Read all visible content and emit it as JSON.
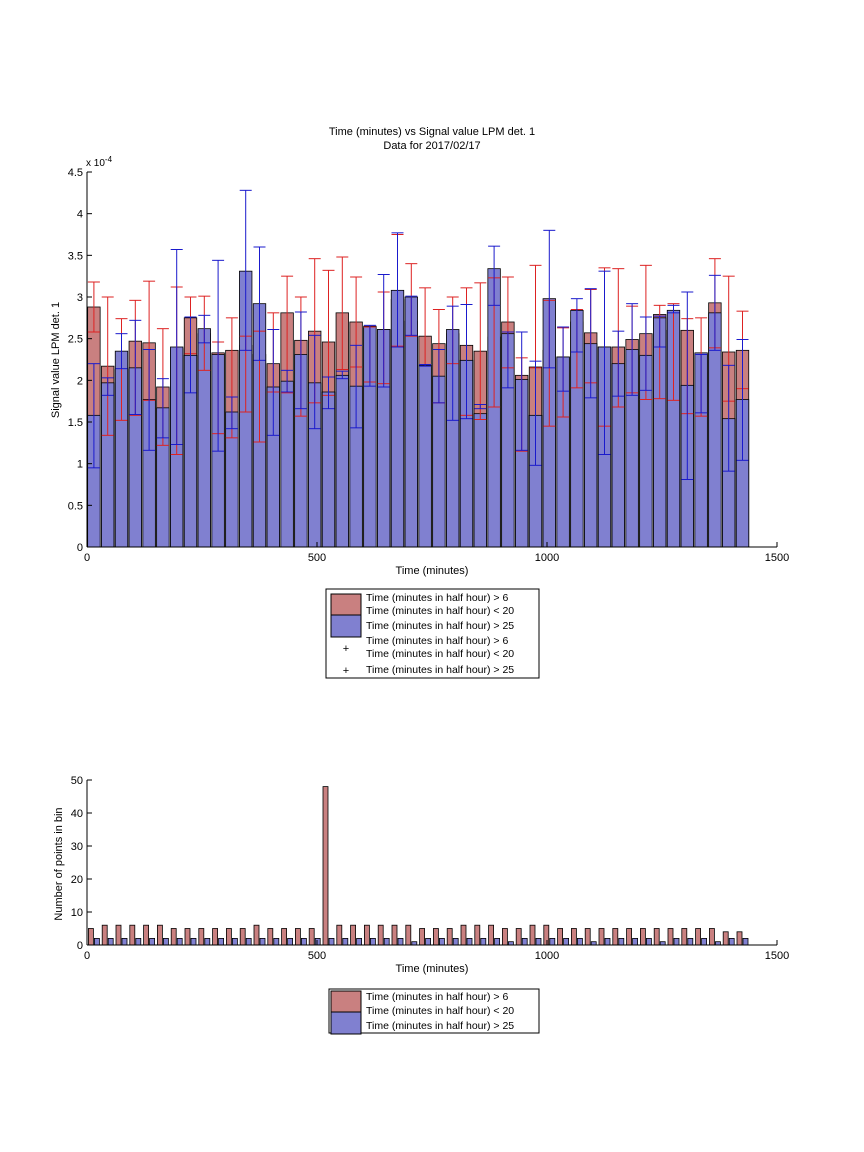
{
  "colors": {
    "red_fill": "#c98080",
    "blue_fill": "#8080d0",
    "red_err": "#dd2222",
    "blue_err": "#1a1acc"
  },
  "chart_data": [
    {
      "type": "bar",
      "title": "Time (minutes) vs Signal value LPM det. 1",
      "subtitle": "Data for 2017/02/17",
      "xlabel": "Time (minutes)",
      "ylabel": "Signal value LPM det. 1",
      "exponent_label": "x 10",
      "exponent_power": "-4",
      "xlim": [
        0,
        1500
      ],
      "ylim": [
        0,
        4.5
      ],
      "xticks": [
        0,
        500,
        1000,
        1500
      ],
      "yticks": [
        0,
        0.5,
        1,
        1.5,
        2,
        2.5,
        3,
        3.5,
        4,
        4.5
      ],
      "grid": false,
      "legend_position": "below",
      "legend": [
        {
          "kind": "patch",
          "color": "red",
          "lines": [
            "Time (minutes in half hour) > 6",
            "Time (minutes in half hour) < 20"
          ]
        },
        {
          "kind": "patch",
          "color": "blue",
          "lines": [
            "Time (minutes in half hour) > 25"
          ]
        },
        {
          "kind": "marker",
          "color": "red",
          "lines": [
            "Time (minutes in half hour) > 6",
            "Time (minutes in half hour) < 20"
          ]
        },
        {
          "kind": "marker",
          "color": "blue",
          "lines": [
            "Time (minutes in half hour) > 25"
          ]
        }
      ],
      "x": [
        0,
        30,
        60,
        90,
        120,
        150,
        180,
        210,
        240,
        270,
        300,
        330,
        360,
        390,
        420,
        450,
        480,
        510,
        540,
        570,
        600,
        630,
        660,
        690,
        720,
        750,
        780,
        810,
        840,
        870,
        900,
        930,
        960,
        990,
        1020,
        1050,
        1080,
        1110,
        1140,
        1170,
        1200,
        1230,
        1260,
        1290,
        1320,
        1350,
        1380,
        1410
      ],
      "series": [
        {
          "name": "Time (minutes in half hour) > 6 / < 20",
          "color": "red",
          "values": [
            2.88,
            2.17,
            2.13,
            2.47,
            2.45,
            1.92,
            2.38,
            2.75,
            2.56,
            2.33,
            2.36,
            2.42,
            2.31,
            2.2,
            2.81,
            2.48,
            2.59,
            2.46,
            2.81,
            2.7,
            2.63,
            2.61,
            2.97,
            2.71,
            2.53,
            2.44,
            2.56,
            2.42,
            2.35,
            2.52,
            2.7,
            2.06,
            2.16,
            2.36,
            2.28,
            2.7,
            2.57,
            2.4,
            2.4,
            2.49,
            2.56,
            2.79,
            2.6,
            2.6,
            2.31,
            2.93,
            2.34,
            2.36
          ],
          "err_low": [
            2.58,
            1.34,
            1.52,
            1.58,
            1.76,
            1.22,
            1.11,
            2.32,
            2.12,
            1.36,
            1.31,
            1.62,
            1.26,
            1.86,
            1.85,
            1.57,
            1.73,
            1.82,
            2.13,
            2.16,
            1.98,
            1.96,
            2.41,
            2.53,
            2.19,
            1.73,
            2.2,
            1.58,
            1.53,
            1.68,
            2.15,
            1.15,
            2.15,
            1.45,
            1.56,
            1.91,
            1.97,
            1.45,
            1.68,
            1.85,
            1.77,
            1.78,
            1.76,
            1.6,
            1.57,
            2.39,
            1.75,
            1.9
          ],
          "err_high": [
            3.18,
            3.0,
            2.74,
            2.96,
            3.19,
            2.62,
            3.12,
            3.0,
            3.01,
            2.46,
            2.75,
            2.53,
            2.59,
            2.81,
            3.25,
            3.0,
            3.46,
            3.32,
            3.48,
            3.24,
            2.64,
            3.06,
            3.75,
            3.4,
            3.11,
            2.85,
            3.0,
            3.11,
            3.17,
            3.23,
            3.24,
            2.27,
            3.38,
            2.96,
            2.63,
            2.85,
            3.09,
            3.35,
            3.34,
            2.89,
            3.38,
            2.9,
            2.92,
            2.74,
            2.75,
            3.46,
            3.25,
            2.83
          ]
        },
        {
          "name": "Time (minutes in half hour) > 25",
          "color": "blue",
          "values": [
            1.58,
            1.97,
            2.35,
            2.15,
            1.77,
            1.67,
            2.4,
            2.3,
            2.62,
            2.31,
            1.62,
            3.31,
            2.92,
            1.92,
            1.99,
            2.31,
            1.97,
            1.86,
            2.06,
            1.93,
            2.65,
            2.61,
            3.08,
            3.0,
            2.18,
            2.05,
            2.61,
            2.24,
            1.6,
            3.34,
            2.56,
            2.01,
            1.58,
            2.98,
            2.28,
            2.84,
            2.44,
            2.4,
            2.2,
            2.37,
            2.3,
            2.75,
            2.84,
            1.94,
            2.33,
            2.81,
            1.54,
            1.77
          ],
          "err_low": [
            0.95,
            1.82,
            2.14,
            1.59,
            1.16,
            1.31,
            1.23,
            1.85,
            2.45,
            1.15,
            1.42,
            2.36,
            2.24,
            1.34,
            1.86,
            1.66,
            1.42,
            1.66,
            2.02,
            1.43,
            1.93,
            1.92,
            2.4,
            2.54,
            2.17,
            1.73,
            1.52,
            1.54,
            1.71,
            2.9,
            1.91,
            1.16,
            0.98,
            2.15,
            1.87,
            2.34,
            1.79,
            1.11,
            1.81,
            1.82,
            1.88,
            2.4,
            2.81,
            0.81,
            1.61,
            2.36,
            0.91,
            1.04
          ],
          "err_high": [
            2.2,
            2.03,
            2.56,
            2.72,
            2.37,
            2.02,
            3.57,
            2.76,
            2.78,
            3.44,
            1.8,
            4.28,
            3.6,
            2.61,
            2.12,
            2.82,
            2.54,
            2.04,
            2.11,
            2.42,
            2.66,
            3.27,
            3.77,
            3.01,
            2.19,
            2.37,
            2.89,
            2.91,
            1.66,
            3.61,
            2.58,
            2.58,
            2.23,
            3.8,
            2.64,
            2.98,
            3.1,
            3.31,
            2.59,
            2.92,
            2.76,
            2.77,
            2.9,
            3.06,
            2.31,
            3.26,
            2.18,
            2.49
          ]
        }
      ]
    },
    {
      "type": "bar",
      "xlabel": "Time (minutes)",
      "ylabel": "Number of points in bin",
      "xlim": [
        0,
        1500
      ],
      "ylim": [
        0,
        50
      ],
      "xticks": [
        0,
        500,
        1000,
        1500
      ],
      "yticks": [
        0,
        10,
        20,
        30,
        40,
        50
      ],
      "grid": false,
      "legend_position": "below",
      "legend": [
        {
          "kind": "patch",
          "color": "red",
          "lines": [
            "Time (minutes in half hour) > 6",
            "Time (minutes in half hour) < 20"
          ]
        },
        {
          "kind": "patch",
          "color": "blue",
          "lines": [
            "Time (minutes in half hour) > 25"
          ]
        }
      ],
      "x": [
        0,
        30,
        60,
        90,
        120,
        150,
        180,
        210,
        240,
        270,
        300,
        330,
        360,
        390,
        420,
        450,
        480,
        510,
        540,
        570,
        600,
        630,
        660,
        690,
        720,
        750,
        780,
        810,
        840,
        870,
        900,
        930,
        960,
        990,
        1020,
        1050,
        1080,
        1110,
        1140,
        1170,
        1200,
        1230,
        1260,
        1290,
        1320,
        1350,
        1380,
        1410
      ],
      "series": [
        {
          "name": "Time (minutes in half hour) > 6 / < 20",
          "color": "red",
          "values": [
            5,
            6,
            6,
            6,
            6,
            6,
            5,
            5,
            5,
            5,
            5,
            5,
            6,
            5,
            5,
            5,
            5,
            48,
            6,
            6,
            6,
            6,
            6,
            6,
            5,
            5,
            5,
            6,
            6,
            6,
            5,
            5,
            6,
            6,
            5,
            5,
            5,
            5,
            5,
            5,
            5,
            5,
            5,
            5,
            5,
            5,
            4,
            4
          ]
        },
        {
          "name": "Time (minutes in half hour) > 25",
          "color": "blue",
          "values": [
            2,
            2,
            2,
            2,
            2,
            2,
            2,
            2,
            2,
            2,
            2,
            2,
            2,
            2,
            2,
            2,
            2,
            2,
            2,
            2,
            2,
            2,
            2,
            1,
            2,
            2,
            2,
            2,
            2,
            2,
            1,
            2,
            2,
            2,
            2,
            2,
            1,
            2,
            2,
            2,
            2,
            1,
            2,
            2,
            2,
            1,
            2,
            2
          ]
        }
      ]
    }
  ]
}
